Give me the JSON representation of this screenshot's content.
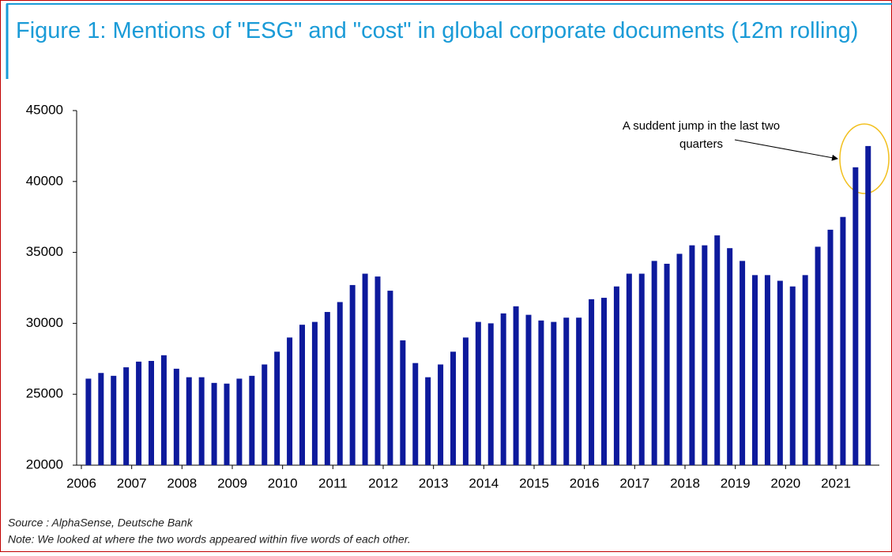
{
  "chart_data": {
    "type": "bar",
    "title": "Figure 1: Mentions of \"ESG\" and \"cost\" in global corporate documents (12m rolling)",
    "annotation": "A suddent jump in the last two quarters",
    "source": "Source : AlphaSense, Deutsche Bank",
    "note": "Note: We looked at where the two words appeared within five words of each other.",
    "color": "#0d1a9c",
    "categories": [
      null,
      null,
      null,
      null,
      null,
      null,
      null,
      null,
      null,
      null,
      null,
      null,
      null,
      null,
      null,
      null,
      null,
      null,
      null,
      null,
      null,
      null,
      null,
      null,
      null,
      null,
      null,
      null,
      null,
      null,
      null,
      null,
      null,
      null,
      null,
      null,
      null,
      null,
      null,
      null,
      null,
      null,
      null,
      null,
      null,
      null,
      null,
      null,
      null,
      null,
      null,
      null,
      null,
      null,
      null,
      null,
      null,
      null,
      null,
      null,
      null,
      null,
      null
    ],
    "values": [
      26100,
      26500,
      26300,
      26900,
      27300,
      27350,
      27750,
      26800,
      26200,
      26200,
      25800,
      25750,
      26100,
      26300,
      27100,
      28000,
      29000,
      29900,
      30100,
      30800,
      31500,
      32700,
      33500,
      33300,
      32300,
      28800,
      27200,
      26200,
      27100,
      28000,
      29000,
      30100,
      30000,
      30700,
      31200,
      30600,
      30200,
      30100,
      30400,
      30400,
      31700,
      31800,
      32600,
      33500,
      33500,
      34400,
      34200,
      34900,
      35500,
      35500,
      36200,
      35300,
      34400,
      33400,
      33400,
      33000,
      32600,
      33400,
      35400,
      36600,
      37500,
      41000,
      42500
    ],
    "ylim": [
      20000,
      45000
    ],
    "yticks": [
      20000,
      25000,
      30000,
      35000,
      40000,
      45000
    ],
    "xticks": [
      2006,
      2007,
      2008,
      2009,
      2010,
      2011,
      2012,
      2013,
      2014,
      2015,
      2016,
      2017,
      2018,
      2019,
      2020,
      2021
    ]
  }
}
